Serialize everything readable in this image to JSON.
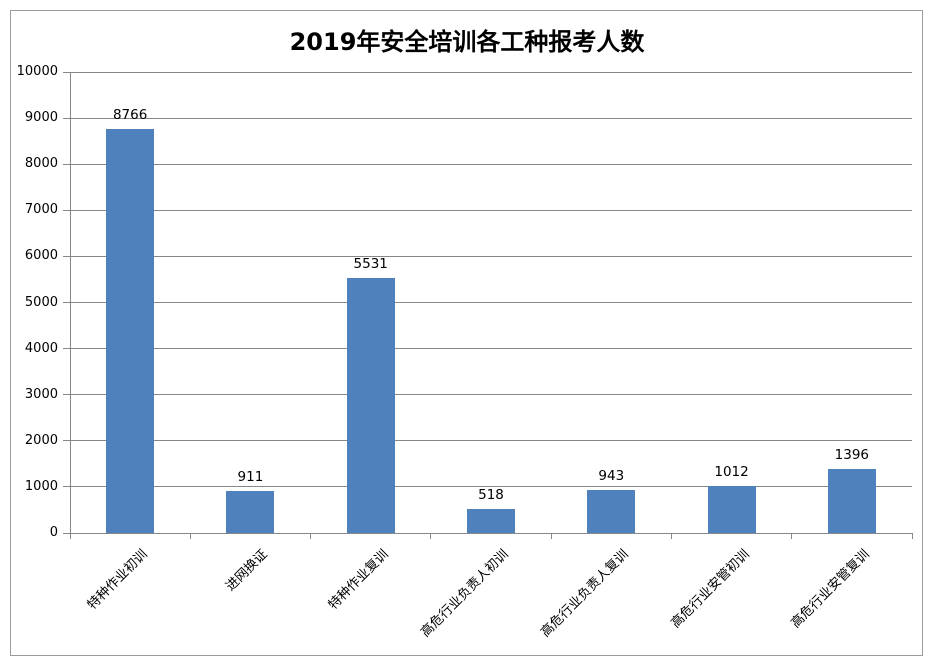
{
  "title": "2019年安全培训各工种报考人数",
  "chart_data": {
    "type": "bar",
    "title": "2019年安全培训各工种报考人数",
    "categories": [
      "特种作业初训",
      "进网换证",
      "特种作业复训",
      "高危行业负责人初训",
      "高危行业负责人复训",
      "高危行业安管初训",
      "高危行业安管复训"
    ],
    "values": [
      8766,
      911,
      5531,
      518,
      943,
      1012,
      1396
    ],
    "data_labels": [
      "8766",
      "911",
      "5531",
      "518",
      "943",
      "1012",
      "1396"
    ],
    "xlabel": "",
    "ylabel": "",
    "ylim": [
      0,
      10000
    ],
    "ytick_step": 1000,
    "yticks": [
      0,
      1000,
      2000,
      3000,
      4000,
      5000,
      6000,
      7000,
      8000,
      9000,
      10000
    ],
    "grid": true,
    "legend": false,
    "bar_color": "#4F81BD",
    "gridline_color": "#878787",
    "axis_color": "#878787",
    "text_color": "#000000",
    "frame_border_color": "#9b9b9b",
    "background_color": "#ffffff"
  }
}
